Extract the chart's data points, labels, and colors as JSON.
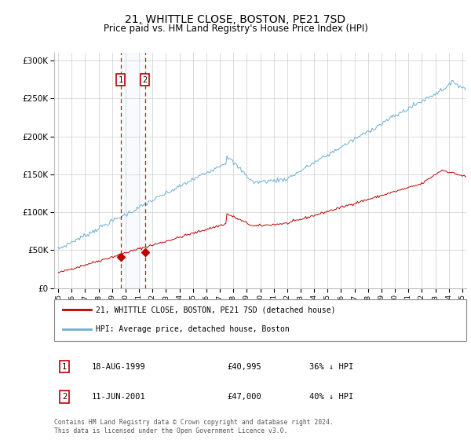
{
  "title": "21, WHITTLE CLOSE, BOSTON, PE21 7SD",
  "subtitle": "Price paid vs. HM Land Registry's House Price Index (HPI)",
  "title_fontsize": 10,
  "subtitle_fontsize": 8.5,
  "hpi_color": "#6baed6",
  "price_color": "#c00000",
  "point_color": "#c00000",
  "sale1": {
    "date_str": "18-AUG-1999",
    "date_x": 1999.63,
    "price": 40995,
    "label": "1"
  },
  "sale2": {
    "date_str": "11-JUN-2001",
    "date_x": 2001.44,
    "price": 47000,
    "label": "2"
  },
  "legend_line1": "21, WHITTLE CLOSE, BOSTON, PE21 7SD (detached house)",
  "legend_line2": "HPI: Average price, detached house, Boston",
  "table_row1": [
    "1",
    "18-AUG-1999",
    "£40,995",
    "36% ↓ HPI"
  ],
  "table_row2": [
    "2",
    "11-JUN-2001",
    "£47,000",
    "40% ↓ HPI"
  ],
  "footer": "Contains HM Land Registry data © Crown copyright and database right 2024.\nThis data is licensed under the Open Government Licence v3.0.",
  "ylim": [
    0,
    310000
  ],
  "xlim": [
    1994.7,
    2025.3
  ],
  "yticks": [
    0,
    50000,
    100000,
    150000,
    200000,
    250000,
    300000
  ],
  "ytick_labels": [
    "£0",
    "£50K",
    "£100K",
    "£150K",
    "£200K",
    "£250K",
    "£300K"
  ],
  "background_color": "#ffffff",
  "grid_color": "#cccccc",
  "span_color": "#d0e4f5"
}
